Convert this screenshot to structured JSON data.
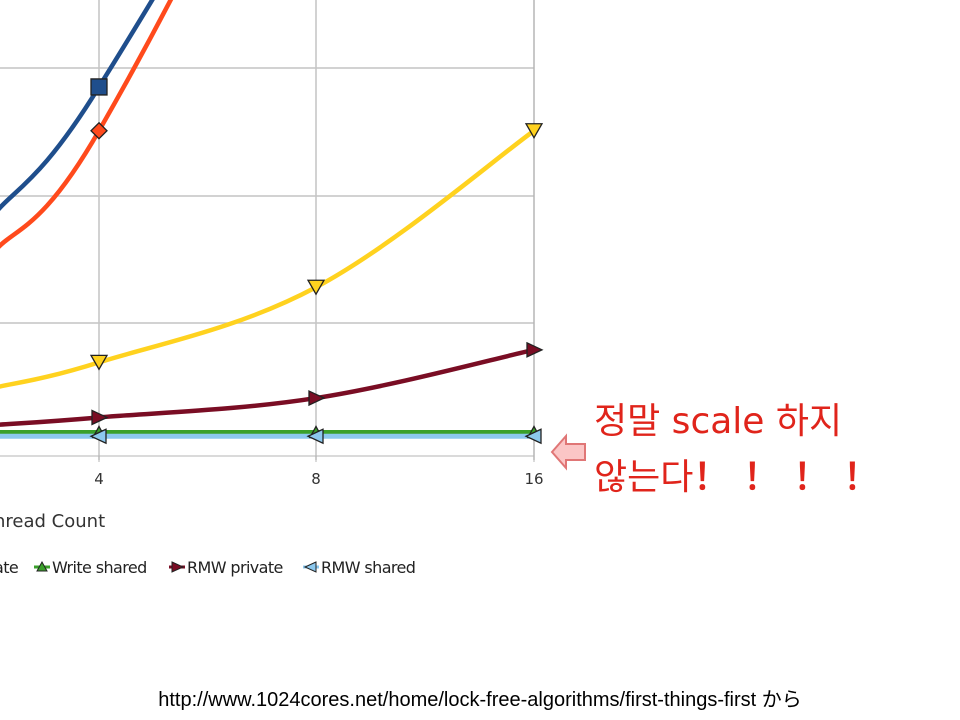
{
  "chart_data": {
    "type": "line",
    "x": [
      4,
      8,
      16
    ],
    "x_tick_labels": [
      "4",
      "8",
      "16"
    ],
    "xlabel": "hread Count",
    "grid": true,
    "series": [
      {
        "name": "",
        "color": "#1f4e8c",
        "marker": "square",
        "values": [
          58,
          121,
          210
        ],
        "left_edge": 38
      },
      {
        "name": "",
        "color": "#ff4a1c",
        "marker": "diamond",
        "values": [
          51,
          121,
          215
        ],
        "left_edge": 32
      },
      {
        "name": "",
        "color": "#ffd21f",
        "marker": "triangle-down",
        "values": [
          14,
          26,
          51
        ],
        "left_edge": 10
      },
      {
        "name": "RMW private",
        "color": "#7a0d24",
        "marker": "triangle-right",
        "values": [
          5.2,
          8.3,
          16
        ],
        "left_edge": 4
      },
      {
        "name": "Write shared",
        "color": "#3aa02b",
        "marker": "triangle-up",
        "values": [
          2.8,
          2.8,
          2.8
        ],
        "left_edge": 2.8
      },
      {
        "name": "RMW shared",
        "color": "#8cc8ee",
        "marker": "triangle-left",
        "values": [
          2.2,
          2.2,
          2.2
        ],
        "left_edge": 2.2
      }
    ],
    "legend": [
      {
        "label": "ate",
        "color": "#ff4a1c",
        "marker": "none"
      },
      {
        "label": "Write shared",
        "color": "#3aa02b",
        "marker": "triangle-up"
      },
      {
        "label": "RMW private",
        "color": "#7a0d24",
        "marker": "triangle-right"
      },
      {
        "label": "RMW shared",
        "color": "#8cc8ee",
        "marker": "triangle-left"
      }
    ]
  },
  "callout": {
    "line1": "정말 scale 하지",
    "line2": "않는다",
    "bangs": "！！！！"
  },
  "source": "http://www.1024cores.net/home/lock-free-algorithms/first-things-first から"
}
